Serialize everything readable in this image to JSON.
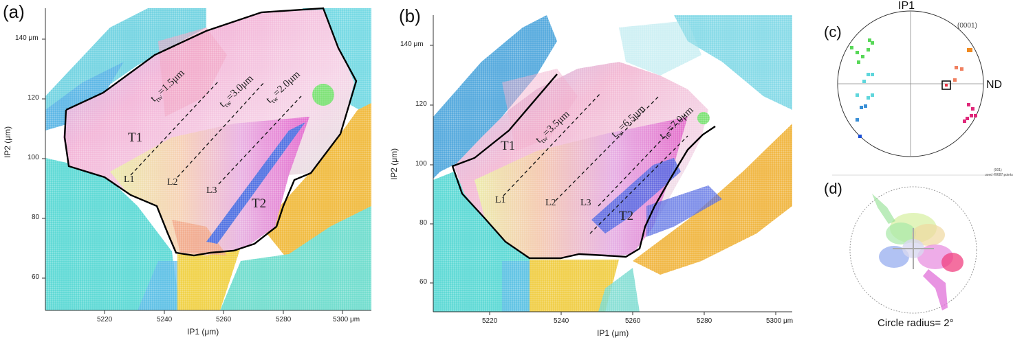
{
  "panels": {
    "a": {
      "label": "(a)",
      "xlabel": "IP1 (μm)",
      "ylabel": "IP2 (μm)",
      "x_ticks": [
        "5220",
        "5240",
        "5260",
        "5280",
        "5300 μm"
      ],
      "y_ticks": [
        "140 μm",
        "120",
        "100",
        "80",
        "60"
      ],
      "twins": [
        "T1",
        "T2"
      ],
      "lines": [
        "L1",
        "L2",
        "L3"
      ],
      "widths": [
        {
          "t": "t",
          "sub": "tw",
          "val": "=1.5μm"
        },
        {
          "t": "t",
          "sub": "tw",
          "val": "=3.0μm"
        },
        {
          "t": "t",
          "sub": "tw",
          "val": "=2.0μm"
        }
      ]
    },
    "b": {
      "label": "(b)",
      "xlabel": "IP1 (μm)",
      "ylabel": "IP2 (μm)",
      "x_ticks": [
        "5220",
        "5240",
        "5260",
        "5280",
        "5300 μm"
      ],
      "y_ticks": [
        "140 μm",
        "120",
        "100",
        "80",
        "60"
      ],
      "twins": [
        "T1",
        "T2"
      ],
      "lines": [
        "L1",
        "L2",
        "L3"
      ],
      "widths": [
        {
          "t": "t",
          "sub": "tw",
          "val": "=3.5μm"
        },
        {
          "t": "t",
          "sub": "tw",
          "val": "=6.5μm"
        },
        {
          "t": "t",
          "sub": "tw",
          "val": "=7.0μm"
        }
      ]
    },
    "c": {
      "label": "(c)",
      "top_label": "IP1",
      "right_label": "ND",
      "pole_label": "(0001)"
    },
    "d": {
      "label": "(d)",
      "header": "(001)",
      "subheader": "used 49687 points",
      "caption": "Circle radius= 2°"
    }
  },
  "colors": {
    "cyan": "#5fd6dc",
    "blue": "#3a8fd6",
    "pink": "#f2a6c8",
    "magenta": "#e040c0",
    "orange": "#f0b030",
    "yellow": "#f2e040",
    "green": "#58d858",
    "violet": "#5a60d8"
  }
}
